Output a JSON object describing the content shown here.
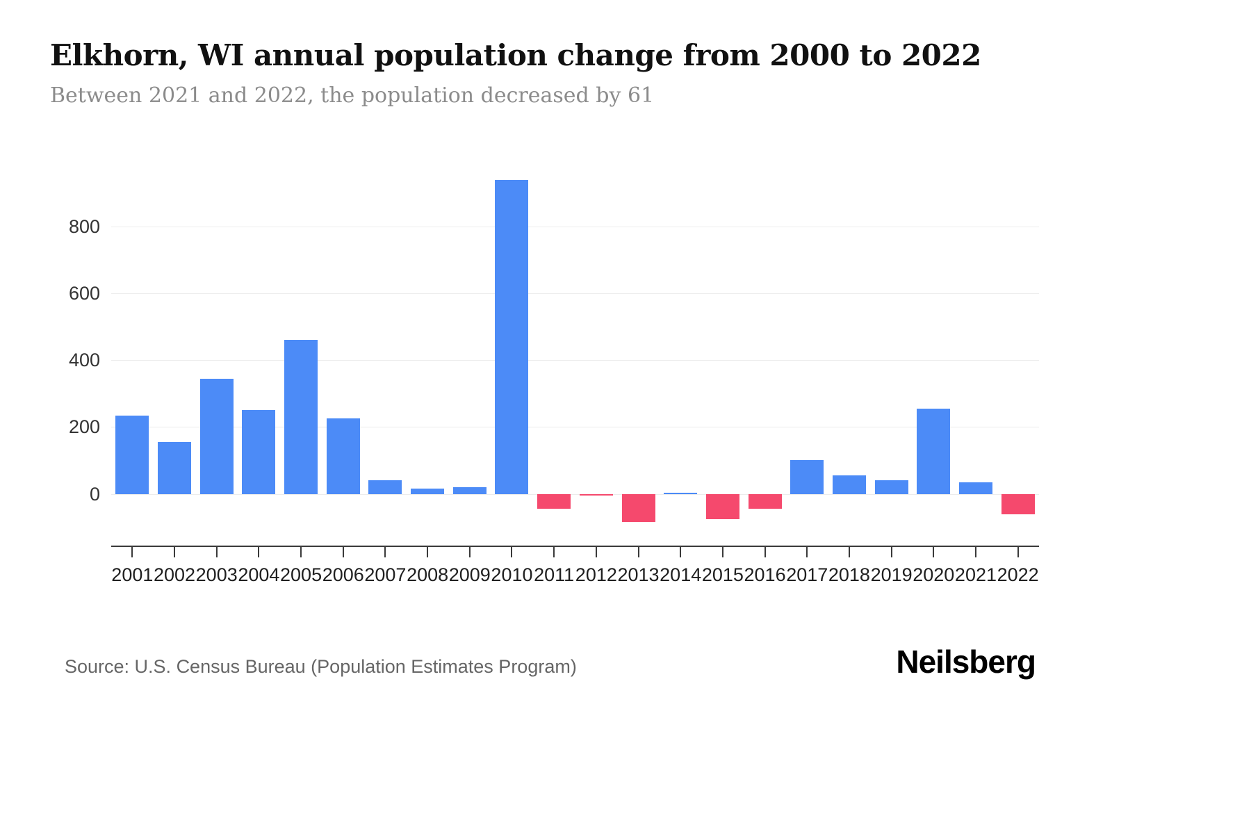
{
  "header": {
    "title": "Elkhorn, WI annual population change from 2000 to 2022",
    "subtitle": "Between 2021 and 2022, the population decreased by 61"
  },
  "footer": {
    "source": "Source: U.S. Census Bureau (Population Estimates Program)",
    "brand": "Neilsberg"
  },
  "colors": {
    "positive": "#4C8BF7",
    "negative": "#F5496D",
    "grid": "#ececec",
    "axis": "#3a3a3a",
    "tick_label": "#333333"
  },
  "chart_data": {
    "type": "bar",
    "title": "Elkhorn, WI annual population change from 2000 to 2022",
    "xlabel": "",
    "ylabel": "",
    "categories": [
      "2001",
      "2002",
      "2003",
      "2004",
      "2005",
      "2006",
      "2007",
      "2008",
      "2009",
      "2010",
      "2011",
      "2012",
      "2013",
      "2014",
      "2015",
      "2016",
      "2017",
      "2018",
      "2019",
      "2020",
      "2021",
      "2022"
    ],
    "values": [
      235,
      155,
      345,
      250,
      460,
      225,
      40,
      15,
      20,
      940,
      -45,
      -5,
      -85,
      2,
      -75,
      -45,
      100,
      55,
      40,
      255,
      35,
      -61
    ],
    "yticks": [
      0,
      200,
      400,
      600,
      800
    ],
    "ylim": [
      -155,
      1000
    ],
    "grid": "horizontal",
    "legend": "none",
    "positive_color": "#4C8BF7",
    "negative_color": "#F5496D"
  }
}
